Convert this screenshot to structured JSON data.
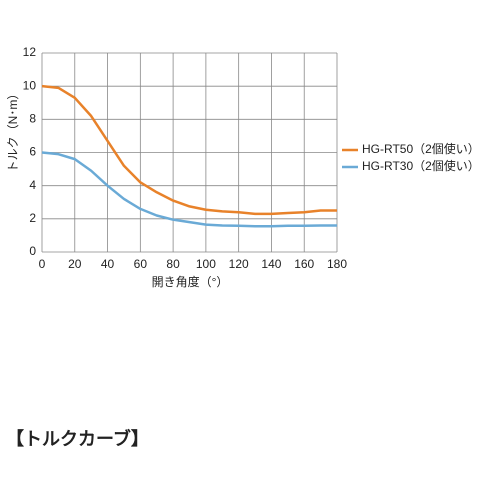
{
  "chart_data": {
    "type": "line",
    "xlabel": "開き角度（°）",
    "ylabel": "トルク（N･m）",
    "x": [
      0,
      10,
      20,
      30,
      40,
      50,
      60,
      70,
      80,
      90,
      100,
      110,
      120,
      130,
      140,
      150,
      160,
      170,
      180
    ],
    "series": [
      {
        "name": "HG-RT50（2個使い）",
        "color": "#e8822a",
        "values": [
          10,
          9.9,
          9.3,
          8.2,
          6.7,
          5.2,
          4.2,
          3.6,
          3.1,
          2.75,
          2.55,
          2.45,
          2.4,
          2.3,
          2.3,
          2.35,
          2.4,
          2.5,
          2.5
        ]
      },
      {
        "name": "HG-RT30（2個使い）",
        "color": "#6aaad6",
        "values": [
          6,
          5.9,
          5.6,
          4.9,
          4.0,
          3.2,
          2.6,
          2.2,
          1.95,
          1.8,
          1.65,
          1.6,
          1.58,
          1.55,
          1.55,
          1.58,
          1.58,
          1.6,
          1.6
        ]
      }
    ],
    "xlim": [
      0,
      180
    ],
    "xticks": [
      0,
      20,
      40,
      60,
      80,
      100,
      120,
      140,
      160,
      180
    ],
    "ylim": [
      0,
      12
    ],
    "yticks": [
      0,
      2,
      4,
      6,
      8,
      10,
      12
    ],
    "grid": true,
    "legend": "right"
  },
  "caption": "【トルクカーブ】"
}
